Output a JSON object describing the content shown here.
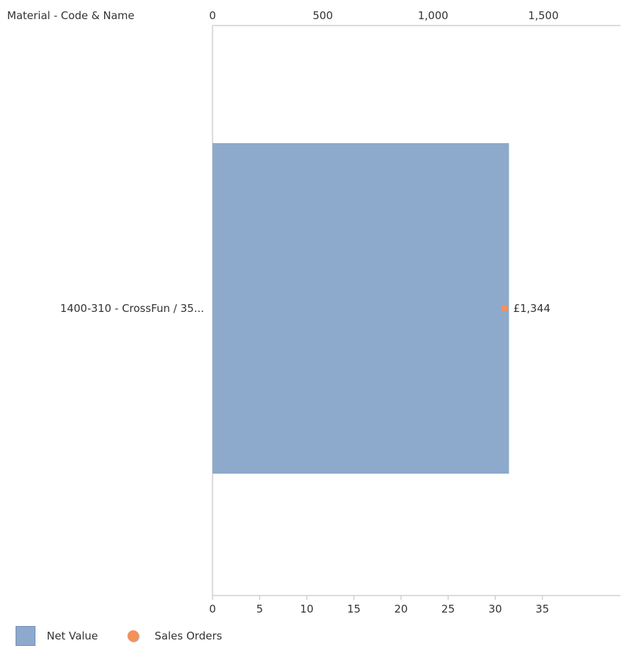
{
  "chart_data": {
    "type": "bar",
    "orientation": "horizontal",
    "category_axis_title": "Material - Code & Name",
    "categories": [
      "1400-310 - CrossFun / 35..."
    ],
    "top_axis": {
      "ticks": [
        "0",
        "500",
        "1,000",
        "1,500"
      ],
      "range": [
        0,
        1850
      ]
    },
    "bottom_axis": {
      "ticks": [
        "0",
        "5",
        "10",
        "15",
        "20",
        "25",
        "30",
        "35"
      ],
      "range": [
        0,
        43.3
      ]
    },
    "series": [
      {
        "name": "Net Value",
        "type": "bar",
        "axis": "top",
        "values": [
          1344
        ],
        "color": "#8da9cb"
      },
      {
        "name": "Sales Orders",
        "type": "point",
        "axis": "bottom",
        "values": [
          31
        ],
        "color": "#f2915a"
      }
    ],
    "data_labels": [
      "£1,344"
    ],
    "legend_position": "bottom-left",
    "grid": false
  }
}
